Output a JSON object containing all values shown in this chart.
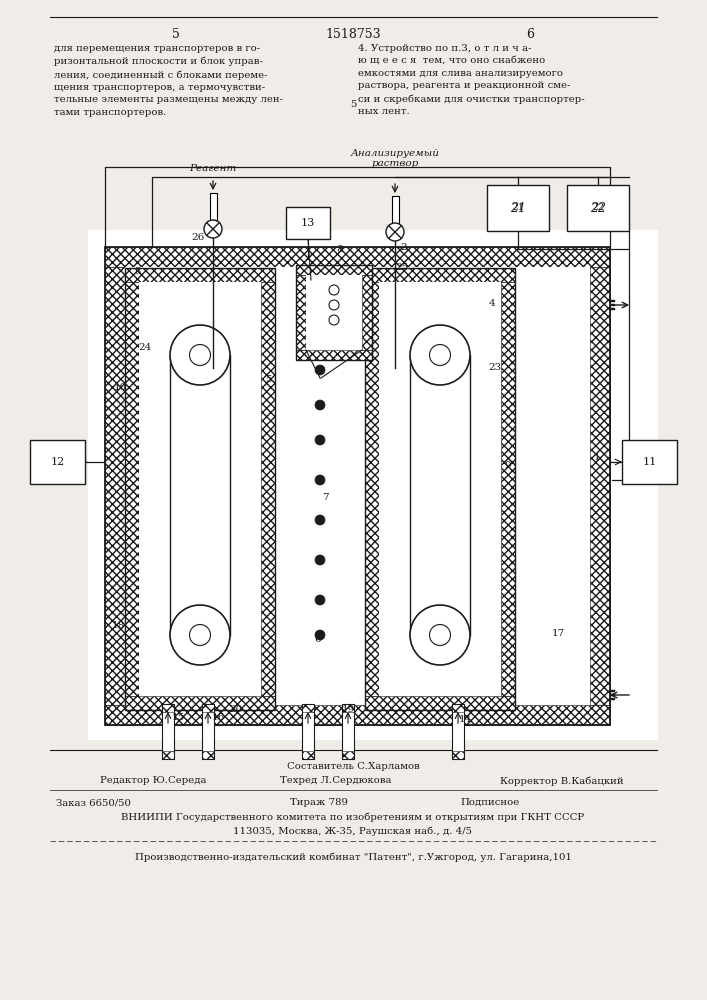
{
  "page_width": 7.07,
  "page_height": 10.0,
  "bg_color": "#f0ede8",
  "text_color": "#1a1a1a",
  "header_left_col": "для перемещения транспортеров в го-\nризонтальной плоскости и блок управ-\nления, соединенный с блоками переме-\nщения транспортеров, а термочувстви-\nтельные элементы размещены между лен-\nтами транспортеров.",
  "header_right_col": "4. Устройство по п.3, о т л и ч а-\nю щ е е с я  тем, что оно снабжено\nемкостями для слива анализируемого\nраствора, реагента и реакционной сме-\nси и скребками для очистки транспортер-\nных лент.",
  "page_num_left": "5",
  "page_num_center": "1518753",
  "page_num_right": "6",
  "footer_editor": "Редактор Ю.Середа",
  "footer_compiler": "Составитель С.Харламов",
  "footer_tech": "Техред Л.Сердюкова",
  "footer_corrector": "Корректор В.Кабацкий",
  "footer_order": "Заказ 6650/50",
  "footer_circulation": "Тираж 789",
  "footer_subscription": "Подписное",
  "footer_vniiipi": "ВНИИПИ Государственного комитета по изобретениям и открытиям при ГКНТ СССР",
  "footer_address": "113035, Москва, Ж-35, Раушская наб., д. 4/5",
  "footer_producer": "Производственно-издательский комбинат \"Патент\", г.Ужгород, ул. Гагарина,101",
  "label_reagent": "Реагент",
  "label_analyzed": "Анализируемый\nраствор"
}
